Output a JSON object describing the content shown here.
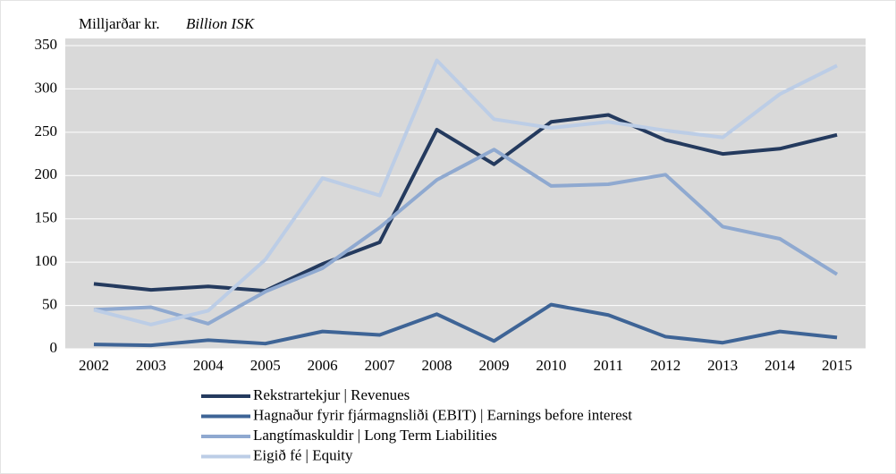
{
  "chart_data": {
    "type": "line",
    "title": "Milljarðar kr.",
    "subtitle": "Billion ISK",
    "categories": [
      "2002",
      "2003",
      "2004",
      "2005",
      "2006",
      "2007",
      "2008",
      "2009",
      "2010",
      "2011",
      "2012",
      "2013",
      "2014",
      "2015"
    ],
    "series": [
      {
        "name": "Rekstrartekjur | Revenues",
        "color": "#243a5e",
        "values": [
          75,
          68,
          72,
          67,
          98,
          123,
          253,
          213,
          262,
          270,
          241,
          225,
          231,
          247
        ]
      },
      {
        "name": "Hagnaður fyrir fjármagnsliði (EBIT) | Earnings before interest",
        "color": "#3e6496",
        "values": [
          5,
          4,
          10,
          6,
          20,
          16,
          40,
          9,
          51,
          39,
          14,
          7,
          20,
          13
        ]
      },
      {
        "name": "Langtímaskuldir | Long Term Liabilities",
        "color": "#8fa9d0",
        "values": [
          45,
          48,
          29,
          66,
          93,
          140,
          195,
          230,
          188,
          190,
          201,
          141,
          127,
          86
        ]
      },
      {
        "name": "Eigið fé | Equity",
        "color": "#bccde6",
        "values": [
          45,
          28,
          44,
          103,
          197,
          177,
          333,
          265,
          255,
          262,
          252,
          244,
          294,
          327
        ]
      }
    ],
    "ylim": [
      0,
      350
    ],
    "yticks": [
      0,
      50,
      100,
      150,
      200,
      250,
      300,
      350
    ],
    "grid": true,
    "legend": "bottom"
  }
}
